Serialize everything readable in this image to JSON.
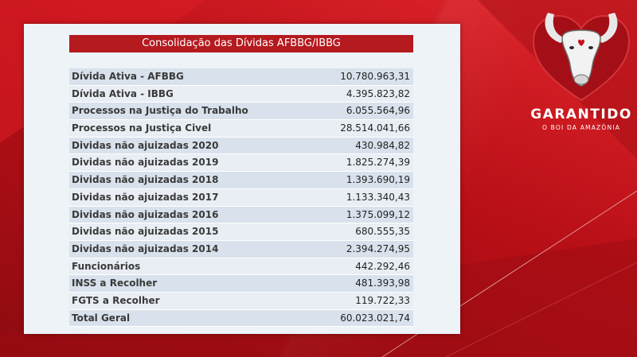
{
  "table": {
    "title": "Consolidação das Dívidas AFBBG/IBBG",
    "rows": [
      {
        "label": "Dívida Ativa - AFBBG",
        "value": "10.780.963,31"
      },
      {
        "label": "Dívida Ativa - IBBG",
        "value": "4.395.823,82"
      },
      {
        "label": "Processos na Justiça do Trabalho",
        "value": "6.055.564,96"
      },
      {
        "label": "Processos na Justiça Civel",
        "value": "28.514.041,66"
      },
      {
        "label": "Dividas não ajuizadas 2020",
        "value": "430.984,82"
      },
      {
        "label": "Dividas não ajuizadas 2019",
        "value": "1.825.274,39"
      },
      {
        "label": "Dividas não ajuizadas 2018",
        "value": "1.393.690,19"
      },
      {
        "label": "Dividas não ajuizadas 2017",
        "value": "1.133.340,43"
      },
      {
        "label": "Dividas não ajuizadas 2016",
        "value": "1.375.099,12"
      },
      {
        "label": "Dividas não ajuizadas 2015",
        "value": "680.555,35"
      },
      {
        "label": "Dividas não ajuizadas 2014",
        "value": "2.394.274,95"
      },
      {
        "label": "Funcionários",
        "value": "442.292,46"
      },
      {
        "label": "INSS a Recolher",
        "value": "481.393,98"
      },
      {
        "label": "FGTS a Recolher",
        "value": "119.722,33"
      },
      {
        "label": "Total Geral",
        "value": "60.023.021,74"
      }
    ]
  },
  "logo": {
    "name": "GARANTIDO",
    "subtitle": "O BOI DA AMAZÔNIA",
    "icon": "bull-heart-logo-icon"
  },
  "colors": {
    "background": "#c4121a",
    "title_bar": "#b51a1f",
    "card": "#eef3f8"
  }
}
